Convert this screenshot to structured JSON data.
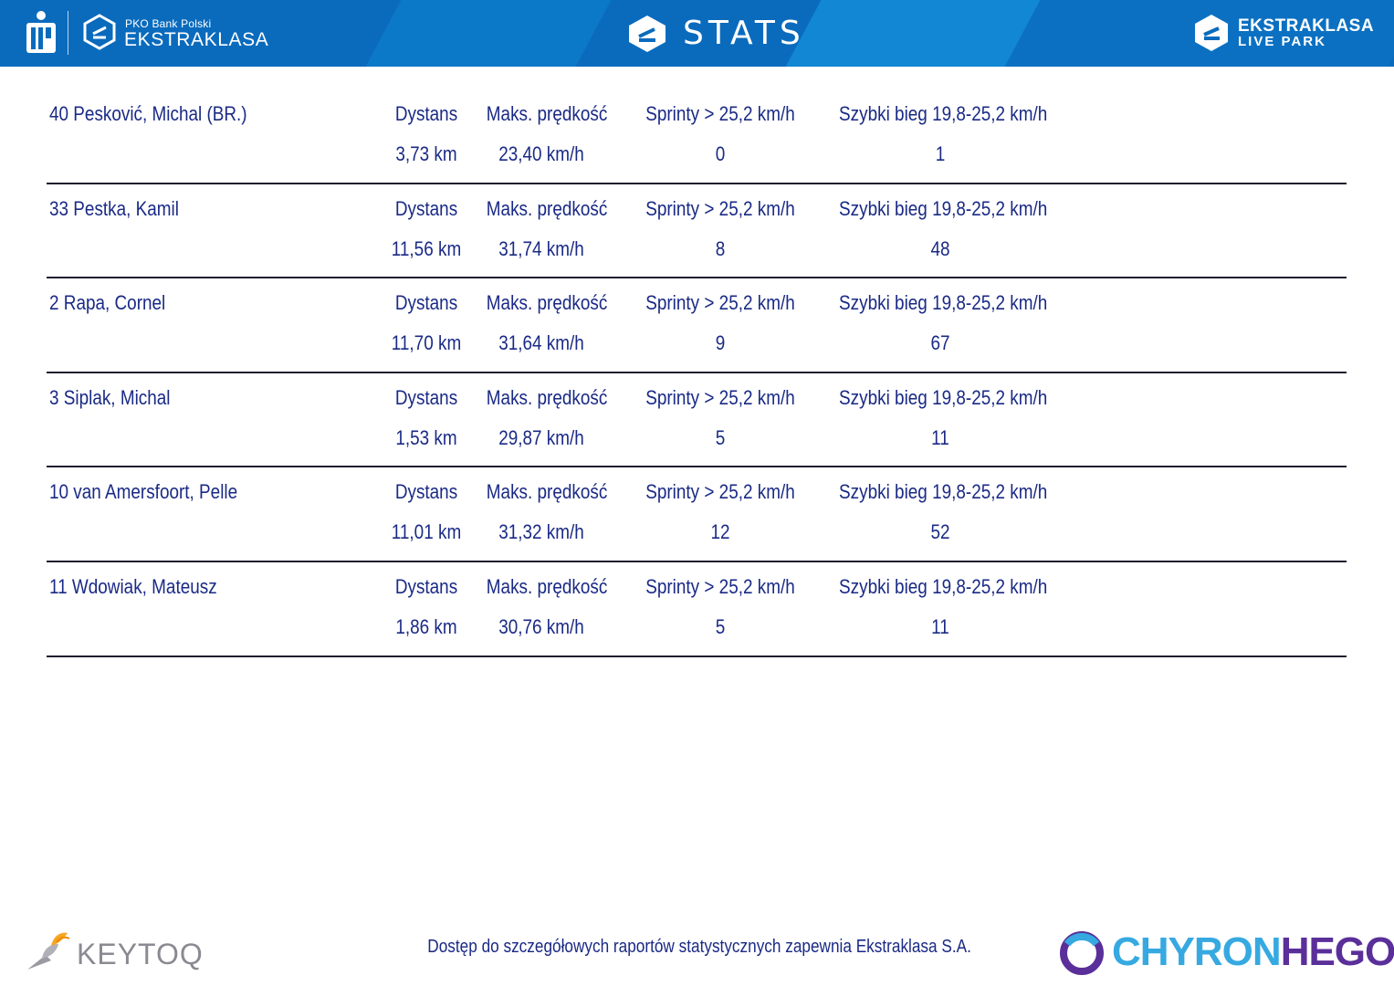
{
  "header": {
    "left_brand_small": "PKO Bank Polski",
    "left_brand_big": "EKSTRAKLASA",
    "title": "STATS",
    "right_brand_line1": "EKSTRAKLASA",
    "right_brand_line2": "LIVE PARK",
    "icons": [
      "pko-bp-logo-icon",
      "ekstraklasa-badge-icon",
      "stats-e-badge-icon",
      "ekstraklasa-live-park-badge-icon"
    ]
  },
  "columns": {
    "distance": "Dystans",
    "max_speed": "Maks. prędkość",
    "sprints": "Sprinty > 25,2 km/h",
    "fast_runs": "Szybki bieg 19,8-25,2 km/h"
  },
  "players": [
    {
      "name": "40  Pesković, Michal (BR.)",
      "distance": "3,73 km",
      "max_speed": "23,40 km/h",
      "sprints": "0",
      "fast_runs": "1"
    },
    {
      "name": "33  Pestka, Kamil",
      "distance": "11,56 km",
      "max_speed": "31,74 km/h",
      "sprints": "8",
      "fast_runs": "48"
    },
    {
      "name": "2  Rapa, Cornel",
      "distance": "11,70 km",
      "max_speed": "31,64 km/h",
      "sprints": "9",
      "fast_runs": "67"
    },
    {
      "name": "3  Siplak, Michal",
      "distance": "1,53 km",
      "max_speed": "29,87 km/h",
      "sprints": "5",
      "fast_runs": "11"
    },
    {
      "name": "10  van Amersfoort, Pelle",
      "distance": "11,01 km",
      "max_speed": "31,32 km/h",
      "sprints": "12",
      "fast_runs": "52"
    },
    {
      "name": "11  Wdowiak, Mateusz",
      "distance": "1,86 km",
      "max_speed": "30,76 km/h",
      "sprints": "5",
      "fast_runs": "11"
    }
  ],
  "footer": {
    "keytoq": "KEYTOQ",
    "note": "Dostęp do szczegółowych raportów statystycznych zapewnia Ekstraklasa S.A.",
    "chyron_part1": "CHYRON",
    "chyron_part2": "HEGO"
  },
  "colors": {
    "header_blue": "#0a6bbd",
    "text_navy": "#1a2a85",
    "chyron_cyan": "#36a9e1",
    "chyron_purple": "#5a2f9a"
  }
}
